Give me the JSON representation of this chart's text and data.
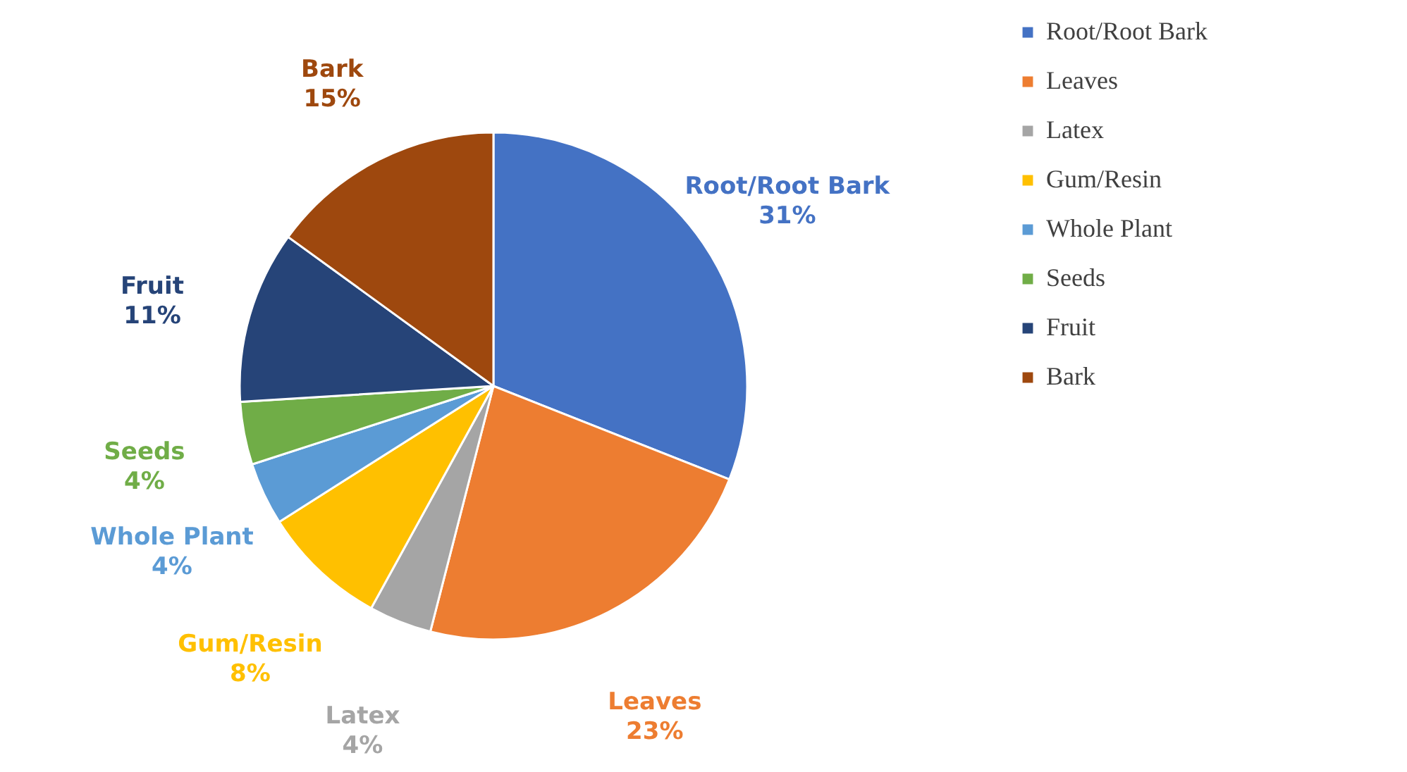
{
  "chart_data": {
    "type": "pie",
    "categories": [
      "Root/Root Bark",
      "Leaves",
      "Latex",
      "Gum/Resin",
      "Whole Plant",
      "Seeds",
      "Fruit",
      "Bark"
    ],
    "values": [
      31,
      23,
      4,
      8,
      4,
      4,
      11,
      15
    ],
    "value_labels": [
      "31%",
      "23%",
      "4%",
      "8%",
      "4%",
      "4%",
      "11%",
      "15%"
    ],
    "colors": [
      "#4472c4",
      "#ed7d31",
      "#a5a5a5",
      "#ffc000",
      "#5b9bd5",
      "#70ad47",
      "#264478",
      "#9e480e"
    ],
    "legend": "right"
  }
}
